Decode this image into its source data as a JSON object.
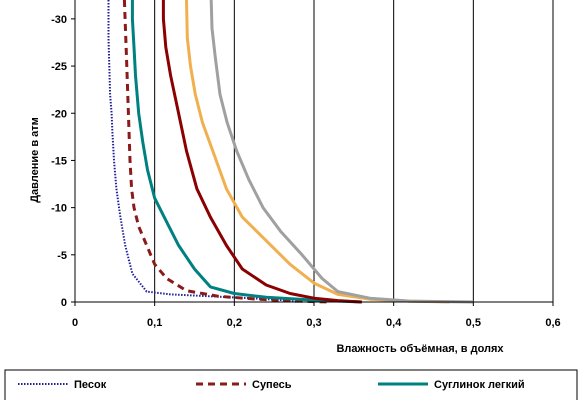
{
  "chart_data": {
    "type": "line",
    "title": "",
    "xlabel": "Влажность объёмная, в долях",
    "ylabel": "Давление в атм",
    "xlim": [
      0,
      0.6
    ],
    "ylim": [
      0,
      -32
    ],
    "x_ticks": [
      "0",
      "0,1",
      "0,2",
      "0,3",
      "0,4",
      "0,5",
      "0,6"
    ],
    "x_tick_values": [
      0,
      0.1,
      0.2,
      0.3,
      0.4,
      0.5,
      0.6
    ],
    "y_ticks": [
      "0",
      "-5",
      "-10",
      "-15",
      "-20",
      "-25",
      "-30"
    ],
    "y_tick_values": [
      0,
      -5,
      -10,
      -15,
      -20,
      -25,
      -30
    ],
    "grid": "vertical",
    "legend_position": "bottom",
    "series": [
      {
        "name": "Песок",
        "color": "#1f1f99",
        "style": "dotted",
        "x": [
          0.042,
          0.042,
          0.043,
          0.044,
          0.046,
          0.047,
          0.049,
          0.052,
          0.057,
          0.063,
          0.072,
          0.09,
          0.12,
          0.17,
          0.22,
          0.26,
          0.28
        ],
        "y": [
          -32,
          -28,
          -25,
          -22,
          -20,
          -18,
          -15,
          -12,
          -9,
          -6,
          -3,
          -1.1,
          -0.8,
          -0.6,
          -0.4,
          -0.2,
          0
        ]
      },
      {
        "name": "Супесь",
        "color": "#8b1a1a",
        "style": "dashed",
        "x": [
          0.062,
          0.065,
          0.067,
          0.069,
          0.071,
          0.074,
          0.08,
          0.09,
          0.1,
          0.115,
          0.14,
          0.18,
          0.23,
          0.28,
          0.32
        ],
        "y": [
          -32,
          -25,
          -20,
          -15,
          -12,
          -10,
          -8,
          -6,
          -4,
          -2.5,
          -1.2,
          -0.6,
          -0.3,
          -0.1,
          0
        ]
      },
      {
        "name": "Суглинок легкий",
        "color": "#008080",
        "style": "solid",
        "x": [
          0.072,
          0.072,
          0.074,
          0.076,
          0.08,
          0.085,
          0.091,
          0.1,
          0.115,
          0.13,
          0.15,
          0.17,
          0.2,
          0.24,
          0.3,
          0.36
        ],
        "y": [
          -32,
          -30,
          -27,
          -24,
          -20,
          -17,
          -14,
          -11,
          -8.5,
          -6,
          -3.5,
          -1.6,
          -0.9,
          -0.5,
          -0.2,
          0
        ]
      },
      {
        "name": "",
        "color": "#8b0000",
        "style": "solid",
        "x": [
          0.111,
          0.111,
          0.114,
          0.12,
          0.13,
          0.14,
          0.153,
          0.17,
          0.19,
          0.21,
          0.24,
          0.27,
          0.3,
          0.33,
          0.36
        ],
        "y": [
          -32,
          -30,
          -27,
          -24,
          -20,
          -16,
          -12,
          -9,
          -6,
          -3.5,
          -1.8,
          -0.9,
          -0.4,
          -0.15,
          0
        ]
      },
      {
        "name": "",
        "color": "#f0b050",
        "style": "solid",
        "x": [
          0.14,
          0.141,
          0.145,
          0.151,
          0.16,
          0.173,
          0.19,
          0.21,
          0.24,
          0.27,
          0.3,
          0.33,
          0.37,
          0.42,
          0.47
        ],
        "y": [
          -32,
          -28,
          -25,
          -22,
          -19,
          -16,
          -12,
          -9,
          -6.5,
          -4,
          -2,
          -0.8,
          -0.3,
          -0.1,
          0
        ]
      },
      {
        "name": "",
        "color": "#a0a0a0",
        "style": "solid",
        "x": [
          0.171,
          0.172,
          0.176,
          0.182,
          0.191,
          0.203,
          0.218,
          0.236,
          0.258,
          0.285,
          0.31,
          0.33,
          0.37,
          0.42,
          0.5
        ],
        "y": [
          -32,
          -29,
          -26,
          -22,
          -19,
          -16,
          -13,
          -10,
          -7.5,
          -5,
          -2.5,
          -1.1,
          -0.4,
          -0.1,
          0
        ]
      }
    ]
  }
}
